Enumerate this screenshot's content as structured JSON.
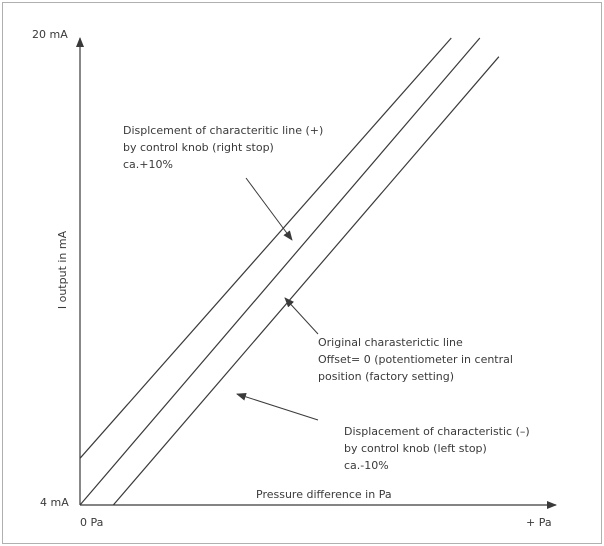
{
  "chart_data": {
    "type": "line",
    "title": "",
    "xlabel": "Pressure difference in Pa",
    "ylabel": "I output in mA",
    "x_ticks": [
      "0 Pa",
      "+ Pa"
    ],
    "y_ticks": [
      "4 mA",
      "20 mA"
    ],
    "series": [
      {
        "x": [
          0.0,
          0.84
        ],
        "y": [
          0.0,
          1.0
        ]
      },
      {
        "x": [
          0.0,
          0.78
        ],
        "y": [
          0.1,
          1.0
        ]
      },
      {
        "x": [
          0.07,
          0.88
        ],
        "y": [
          0.0,
          0.96
        ]
      }
    ],
    "annotations": [
      {
        "id": "upper",
        "lines": [
          "Displcement of characteritic line (+)",
          "by control knob (right stop)",
          "ca.+10%"
        ]
      },
      {
        "id": "original",
        "lines": [
          "Original charasterictic line",
          "Offset= 0 (potentiometer in central",
          "position (factory setting)"
        ]
      },
      {
        "id": "lower",
        "lines": [
          "Displacement of characteristic (–)",
          "by control knob (left stop)",
          "ca.-10%"
        ]
      }
    ],
    "colors": {
      "line": "#3a3a3a",
      "frame": "#b0b0b0",
      "background": "#ffffff"
    },
    "grid": false
  }
}
